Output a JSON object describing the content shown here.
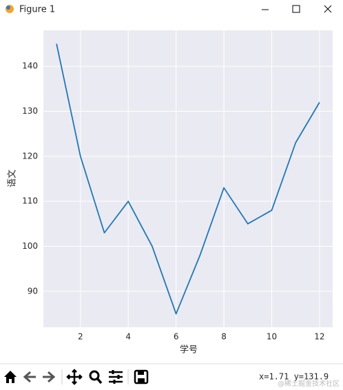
{
  "window": {
    "title": "Figure 1"
  },
  "chart_data": {
    "type": "line",
    "xlabel": "学号",
    "ylabel": "语文",
    "x": [
      1,
      2,
      3,
      4,
      5,
      6,
      7,
      8,
      9,
      10,
      11,
      12
    ],
    "series": [
      {
        "color": "#1f77b4",
        "values": [
          145,
          120,
          103,
          110,
          100,
          85,
          98,
          113,
          105,
          108,
          123,
          132
        ]
      }
    ],
    "xlim": [
      0.45,
      12.55
    ],
    "xticks": [
      2,
      4,
      6,
      8,
      10,
      12
    ],
    "ylim": [
      82,
      148
    ],
    "yticks": [
      90,
      100,
      110,
      120,
      130,
      140
    ],
    "grid": true
  },
  "status": "x=1.71 y=131.9",
  "watermark": "@稀土掘金技术社区"
}
